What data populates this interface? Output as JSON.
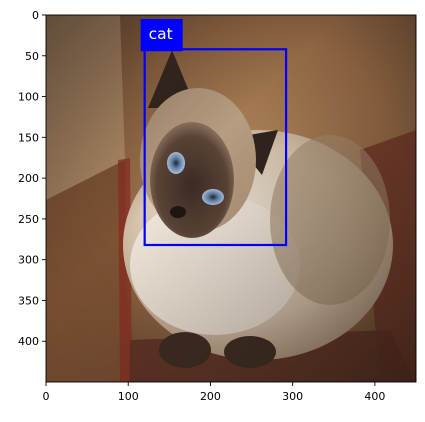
{
  "image": {
    "subject": "cat-photo",
    "colors": {
      "box": "#0000ff",
      "label_bg": "#0000ff",
      "label_text": "#ffffff"
    }
  },
  "detection": {
    "label": "cat",
    "bbox_image_units": {
      "x_min": 120,
      "y_min": 42,
      "x_max": 292,
      "y_max": 282
    }
  },
  "axes": {
    "x_range": [
      0,
      450
    ],
    "y_range": [
      450,
      0
    ],
    "x_ticks": [
      0,
      100,
      200,
      300,
      400
    ],
    "y_ticks": [
      0,
      50,
      100,
      150,
      200,
      250,
      300,
      350,
      400
    ]
  }
}
